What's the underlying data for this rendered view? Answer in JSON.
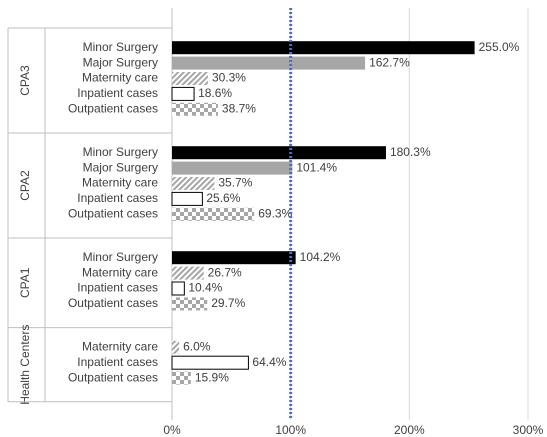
{
  "chart_data": {
    "type": "grouped-barh",
    "xlim": [
      0,
      300
    ],
    "xticks": [
      {
        "value": 0,
        "label": "0%"
      },
      {
        "value": 100,
        "label": "100%"
      },
      {
        "value": 200,
        "label": "200%"
      },
      {
        "value": 300,
        "label": "300%"
      }
    ],
    "grid": true,
    "reference_line": 100,
    "reference_color": "#4472c4",
    "groups": [
      {
        "name": "CPA3",
        "categories": [
          "Minor Surgery",
          "Major Surgery",
          "Maternity care",
          "Inpatient cases",
          "Outpatient cases"
        ],
        "values": [
          255.0,
          162.7,
          30.3,
          18.6,
          38.7
        ],
        "value_labels": [
          "255.0%",
          "162.7%",
          "30.3%",
          "18.6%",
          "38.7%"
        ],
        "fills": [
          "#000000",
          "#a6a6a6",
          "hatch",
          "#ffffff",
          "checker"
        ]
      },
      {
        "name": "CPA2",
        "categories": [
          "Minor Surgery",
          "Major Surgery",
          "Maternity care",
          "Inpatient cases",
          "Outpatient cases"
        ],
        "values": [
          180.3,
          101.4,
          35.7,
          25.6,
          69.3
        ],
        "value_labels": [
          "180.3%",
          "101.4%",
          "35.7%",
          "25.6%",
          "69.3%"
        ],
        "fills": [
          "#000000",
          "#a6a6a6",
          "hatch",
          "#ffffff",
          "checker"
        ]
      },
      {
        "name": "CPA1",
        "categories": [
          "Minor Surgery",
          "Maternity care",
          "Inpatient cases",
          "Outpatient cases"
        ],
        "values": [
          104.2,
          26.7,
          10.4,
          29.7
        ],
        "value_labels": [
          "104.2%",
          "26.7%",
          "10.4%",
          "29.7%"
        ],
        "fills": [
          "#000000",
          "hatch",
          "#ffffff",
          "checker"
        ]
      },
      {
        "name": "Health Centers",
        "categories": [
          "Maternity care",
          "Inpatient cases",
          "Outpatient cases"
        ],
        "values": [
          6.0,
          64.4,
          15.9
        ],
        "value_labels": [
          "6.0%",
          "64.4%",
          "15.9%"
        ],
        "fills": [
          "hatch",
          "#ffffff",
          "checker"
        ]
      }
    ]
  }
}
